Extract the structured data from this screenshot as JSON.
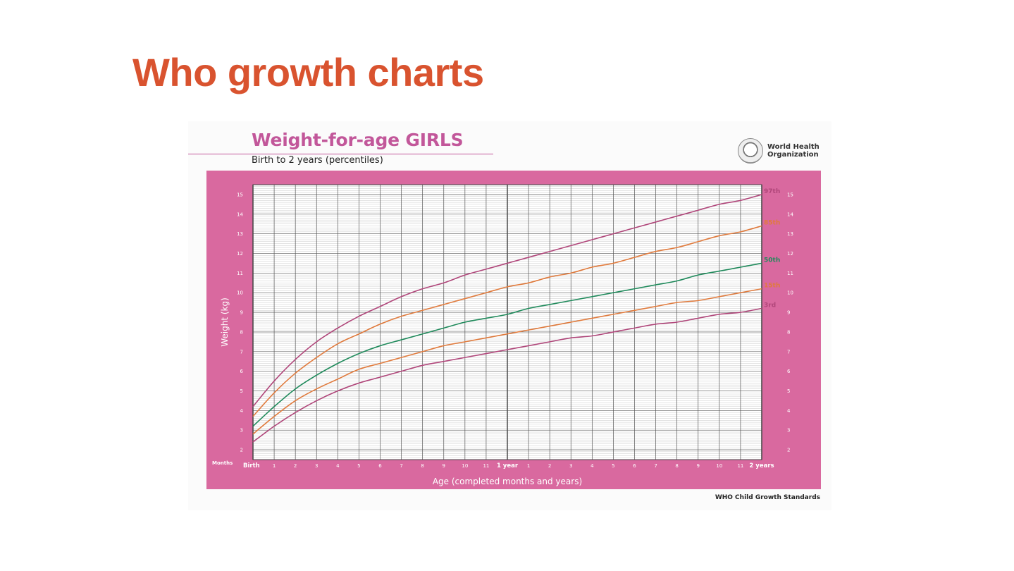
{
  "slide": {
    "title": "Who growth charts"
  },
  "card": {
    "title": "Weight-for-age GIRLS",
    "subtitle": "Birth to 2 years (percentiles)",
    "logo_line1": "World Health",
    "logo_line2": "Organization",
    "footer": "WHO Child Growth Standards"
  },
  "chart_data": {
    "type": "line",
    "title": "Weight-for-age GIRLS",
    "subtitle": "Birth to 2 years (percentiles)",
    "xlabel": "Age (completed months and years)",
    "ylabel": "Weight (kg)",
    "x_prefix_label": "Months",
    "xlim": [
      0,
      24
    ],
    "ylim": [
      1.5,
      15.5
    ],
    "grid": true,
    "x_ticks": [
      {
        "v": 0,
        "label": "Birth",
        "major": true
      },
      {
        "v": 1,
        "label": "1"
      },
      {
        "v": 2,
        "label": "2"
      },
      {
        "v": 3,
        "label": "3"
      },
      {
        "v": 4,
        "label": "4"
      },
      {
        "v": 5,
        "label": "5"
      },
      {
        "v": 6,
        "label": "6"
      },
      {
        "v": 7,
        "label": "7"
      },
      {
        "v": 8,
        "label": "8"
      },
      {
        "v": 9,
        "label": "9"
      },
      {
        "v": 10,
        "label": "10"
      },
      {
        "v": 11,
        "label": "11"
      },
      {
        "v": 12,
        "label": "1 year",
        "major": true
      },
      {
        "v": 13,
        "label": "1"
      },
      {
        "v": 14,
        "label": "2"
      },
      {
        "v": 15,
        "label": "3"
      },
      {
        "v": 16,
        "label": "4"
      },
      {
        "v": 17,
        "label": "5"
      },
      {
        "v": 18,
        "label": "6"
      },
      {
        "v": 19,
        "label": "7"
      },
      {
        "v": 20,
        "label": "8"
      },
      {
        "v": 21,
        "label": "9"
      },
      {
        "v": 22,
        "label": "10"
      },
      {
        "v": 23,
        "label": "11"
      },
      {
        "v": 24,
        "label": "2 years",
        "major": true
      }
    ],
    "y_ticks": [
      2,
      3,
      4,
      5,
      6,
      7,
      8,
      9,
      10,
      11,
      12,
      13,
      14,
      15
    ],
    "x": [
      0,
      1,
      2,
      3,
      4,
      5,
      6,
      7,
      8,
      9,
      10,
      11,
      12,
      13,
      14,
      15,
      16,
      17,
      18,
      19,
      20,
      21,
      22,
      23,
      24
    ],
    "series": [
      {
        "name": "97th",
        "color": "#b0467a",
        "values": [
          4.2,
          5.5,
          6.6,
          7.5,
          8.2,
          8.8,
          9.3,
          9.8,
          10.2,
          10.5,
          10.9,
          11.2,
          11.5,
          11.8,
          12.1,
          12.4,
          12.7,
          13.0,
          13.3,
          13.6,
          13.9,
          14.2,
          14.5,
          14.7,
          15.0
        ]
      },
      {
        "name": "85th",
        "color": "#e07a3c",
        "values": [
          3.7,
          4.9,
          5.9,
          6.7,
          7.4,
          7.9,
          8.4,
          8.8,
          9.1,
          9.4,
          9.7,
          10.0,
          10.3,
          10.5,
          10.8,
          11.0,
          11.3,
          11.5,
          11.8,
          12.1,
          12.3,
          12.6,
          12.9,
          13.1,
          13.4
        ]
      },
      {
        "name": "50th",
        "color": "#1f8a5b",
        "values": [
          3.2,
          4.2,
          5.1,
          5.8,
          6.4,
          6.9,
          7.3,
          7.6,
          7.9,
          8.2,
          8.5,
          8.7,
          8.9,
          9.2,
          9.4,
          9.6,
          9.8,
          10.0,
          10.2,
          10.4,
          10.6,
          10.9,
          11.1,
          11.3,
          11.5
        ]
      },
      {
        "name": "15th",
        "color": "#e07a3c",
        "values": [
          2.8,
          3.7,
          4.5,
          5.1,
          5.6,
          6.1,
          6.4,
          6.7,
          7.0,
          7.3,
          7.5,
          7.7,
          7.9,
          8.1,
          8.3,
          8.5,
          8.7,
          8.9,
          9.1,
          9.3,
          9.5,
          9.6,
          9.8,
          10.0,
          10.2
        ]
      },
      {
        "name": "3rd",
        "color": "#b0467a",
        "values": [
          2.4,
          3.2,
          3.9,
          4.5,
          5.0,
          5.4,
          5.7,
          6.0,
          6.3,
          6.5,
          6.7,
          6.9,
          7.1,
          7.3,
          7.5,
          7.7,
          7.8,
          8.0,
          8.2,
          8.4,
          8.5,
          8.7,
          8.9,
          9.0,
          9.2
        ]
      }
    ]
  }
}
